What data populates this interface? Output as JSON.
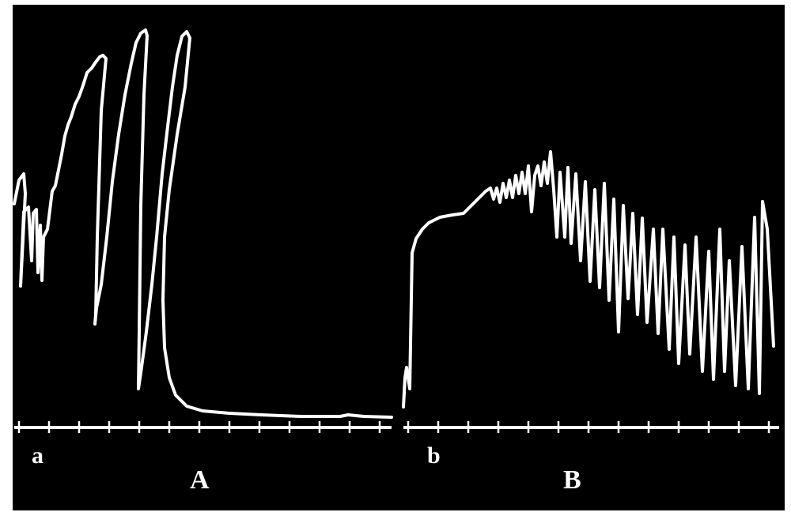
{
  "figure": {
    "background_color": "#000000",
    "trace_color": "#ffffff",
    "frame_color": "#ffffff",
    "panel_A": {
      "start_letter": "a",
      "panel_label": "A"
    },
    "panel_B": {
      "start_letter": "b",
      "panel_label": "B"
    }
  }
}
